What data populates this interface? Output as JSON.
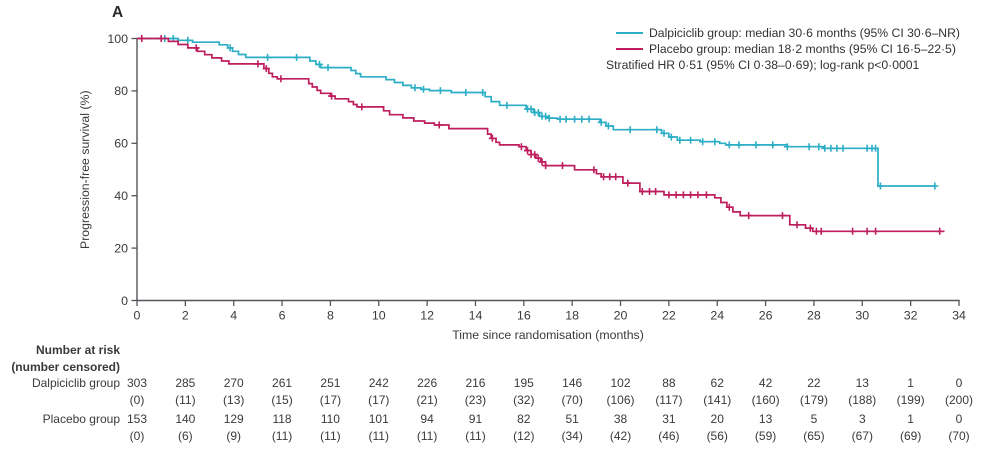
{
  "panel_label": "A",
  "colors": {
    "dalpiciclib": "#2CAEC6",
    "placebo": "#BE1E5D",
    "axis": "#55565A",
    "text": "#3B3A38"
  },
  "legend": {
    "entries": [
      {
        "label": "Dalpiciclib group: median 30·6 months (95% CI 30·6–NR)",
        "color": "#2CAEC6"
      },
      {
        "label": "Placebo group: median 18·2 months (95% CI 16·5–22·5)",
        "color": "#BE1E5D"
      }
    ],
    "note": "Stratified HR 0·51 (95% CI 0·38–0·69); log-rank p<0·0001"
  },
  "chart_data": {
    "type": "line",
    "subtype": "kaplan-meier-step",
    "title": "",
    "xlabel": "Time since randomisation (months)",
    "ylabel": "Progression-free survival (%)",
    "xlim": [
      0,
      34
    ],
    "ylim": [
      0,
      100
    ],
    "xticks": [
      0,
      2,
      4,
      6,
      8,
      10,
      12,
      14,
      16,
      18,
      20,
      22,
      24,
      26,
      28,
      30,
      32,
      34
    ],
    "yticks": [
      0,
      20,
      40,
      60,
      80,
      100
    ],
    "grid": false,
    "legend_position": "top-right",
    "series": [
      {
        "id": "dalpiciclib",
        "name": "Dalpiciclib group",
        "color": "#2CAEC6",
        "median_months": "30·6",
        "ci": "30·6–NR",
        "steps": [
          [
            0,
            100
          ],
          [
            1.7,
            99.3
          ],
          [
            2.3,
            98.6
          ],
          [
            3.4,
            97.6
          ],
          [
            3.75,
            96.4
          ],
          [
            3.95,
            95.1
          ],
          [
            4.2,
            93.9
          ],
          [
            4.5,
            92.8
          ],
          [
            7.15,
            91.4
          ],
          [
            7.4,
            90.1
          ],
          [
            7.6,
            88.9
          ],
          [
            8.85,
            87.8
          ],
          [
            9.05,
            86.6
          ],
          [
            9.25,
            85.4
          ],
          [
            10.3,
            84.3
          ],
          [
            10.65,
            83.2
          ],
          [
            11.0,
            82.1
          ],
          [
            11.35,
            81.2
          ],
          [
            11.75,
            80.6
          ],
          [
            12.1,
            80.1
          ],
          [
            13.0,
            79.4
          ],
          [
            14.4,
            77.8
          ],
          [
            14.65,
            75.9
          ],
          [
            15.0,
            74.5
          ],
          [
            16.1,
            73.1
          ],
          [
            16.4,
            71.7
          ],
          [
            16.65,
            70.3
          ],
          [
            16.95,
            69.6
          ],
          [
            17.4,
            69.2
          ],
          [
            19.15,
            68.0
          ],
          [
            19.4,
            66.6
          ],
          [
            19.7,
            65.2
          ],
          [
            21.7,
            63.8
          ],
          [
            22.0,
            62.4
          ],
          [
            22.35,
            61.2
          ],
          [
            23.3,
            60.6
          ],
          [
            24.1,
            60.0
          ],
          [
            24.35,
            59.4
          ],
          [
            26.9,
            58.7
          ],
          [
            28.45,
            58.1
          ],
          [
            30.65,
            43.7
          ]
        ],
        "end_time": 33.05,
        "censor_times": [
          1.15,
          1.5,
          2.1,
          3.85,
          5.4,
          6.6,
          7.55,
          7.9,
          11.5,
          11.85,
          12.55,
          13.6,
          14.3,
          15.3,
          16.15,
          16.3,
          16.45,
          16.6,
          16.75,
          16.9,
          17.05,
          17.5,
          17.75,
          18.1,
          18.4,
          18.7,
          19.2,
          19.5,
          20.4,
          21.5,
          21.8,
          22.1,
          22.45,
          22.9,
          23.4,
          23.9,
          24.5,
          24.9,
          25.6,
          26.3,
          26.9,
          27.8,
          28.2,
          28.45,
          28.7,
          28.95,
          29.2,
          30.2,
          30.4,
          30.55,
          30.75,
          33.0
        ]
      },
      {
        "id": "placebo",
        "name": "Placebo group",
        "color": "#BE1E5D",
        "median_months": "18·2",
        "ci": "16·5–22·5",
        "steps": [
          [
            0,
            100
          ],
          [
            1.3,
            98.9
          ],
          [
            1.7,
            97.7
          ],
          [
            2.1,
            96.4
          ],
          [
            2.5,
            95.1
          ],
          [
            2.8,
            93.8
          ],
          [
            3.1,
            92.6
          ],
          [
            3.5,
            91.4
          ],
          [
            3.8,
            90.3
          ],
          [
            5.25,
            88.5
          ],
          [
            5.45,
            86.7
          ],
          [
            5.6,
            85.4
          ],
          [
            5.8,
            84.6
          ],
          [
            7.1,
            82.8
          ],
          [
            7.25,
            81.5
          ],
          [
            7.45,
            80.2
          ],
          [
            7.6,
            79.1
          ],
          [
            8.0,
            78.0
          ],
          [
            8.2,
            77.0
          ],
          [
            8.75,
            75.9
          ],
          [
            8.95,
            74.8
          ],
          [
            9.1,
            73.9
          ],
          [
            10.2,
            72.4
          ],
          [
            10.45,
            70.9
          ],
          [
            11.0,
            69.7
          ],
          [
            11.45,
            68.5
          ],
          [
            11.9,
            67.7
          ],
          [
            12.3,
            67.0
          ],
          [
            12.9,
            65.6
          ],
          [
            14.5,
            63.5
          ],
          [
            14.65,
            61.9
          ],
          [
            14.85,
            60.4
          ],
          [
            15.0,
            59.4
          ],
          [
            15.8,
            58.7
          ],
          [
            16.1,
            57.2
          ],
          [
            16.3,
            55.7
          ],
          [
            16.5,
            54.3
          ],
          [
            16.7,
            52.9
          ],
          [
            16.9,
            51.5
          ],
          [
            18.1,
            49.9
          ],
          [
            19.0,
            48.4
          ],
          [
            19.2,
            47.2
          ],
          [
            20.1,
            44.8
          ],
          [
            20.8,
            41.6
          ],
          [
            21.8,
            40.3
          ],
          [
            23.9,
            39.2
          ],
          [
            24.15,
            37.4
          ],
          [
            24.4,
            35.6
          ],
          [
            24.65,
            33.8
          ],
          [
            24.95,
            32.4
          ],
          [
            27.0,
            28.9
          ],
          [
            27.65,
            27.6
          ],
          [
            27.95,
            26.4
          ]
        ],
        "end_time": 33.4,
        "censor_times": [
          0.2,
          1.0,
          2.45,
          5.0,
          5.35,
          5.95,
          8.05,
          9.3,
          12.5,
          14.7,
          15.9,
          16.15,
          16.3,
          16.45,
          16.6,
          16.75,
          16.9,
          17.6,
          18.9,
          19.3,
          19.55,
          19.8,
          20.3,
          20.9,
          21.2,
          21.45,
          22.0,
          22.3,
          22.6,
          22.9,
          23.2,
          23.55,
          24.5,
          25.3,
          26.7,
          27.3,
          27.85,
          28.1,
          28.3,
          29.6,
          30.2,
          30.55,
          33.2
        ]
      }
    ]
  },
  "risk_table": {
    "header_line1": "Number at risk",
    "header_line2": "(number censored)",
    "months": [
      0,
      2,
      4,
      6,
      8,
      10,
      12,
      14,
      16,
      18,
      20,
      22,
      24,
      26,
      28,
      30,
      32,
      34
    ],
    "rows": [
      {
        "label": "Dalpiciclib group",
        "at_risk": [
          303,
          285,
          270,
          261,
          251,
          242,
          226,
          216,
          195,
          146,
          102,
          88,
          62,
          42,
          22,
          13,
          1,
          0
        ],
        "censored": [
          0,
          11,
          13,
          15,
          17,
          17,
          21,
          23,
          32,
          70,
          106,
          117,
          141,
          160,
          179,
          188,
          199,
          200
        ]
      },
      {
        "label": "Placebo group",
        "at_risk": [
          153,
          140,
          129,
          118,
          110,
          101,
          94,
          91,
          82,
          51,
          38,
          31,
          20,
          13,
          5,
          3,
          1,
          0
        ],
        "censored": [
          0,
          6,
          9,
          11,
          11,
          11,
          11,
          11,
          12,
          34,
          42,
          46,
          56,
          59,
          65,
          67,
          69,
          70
        ]
      }
    ]
  }
}
